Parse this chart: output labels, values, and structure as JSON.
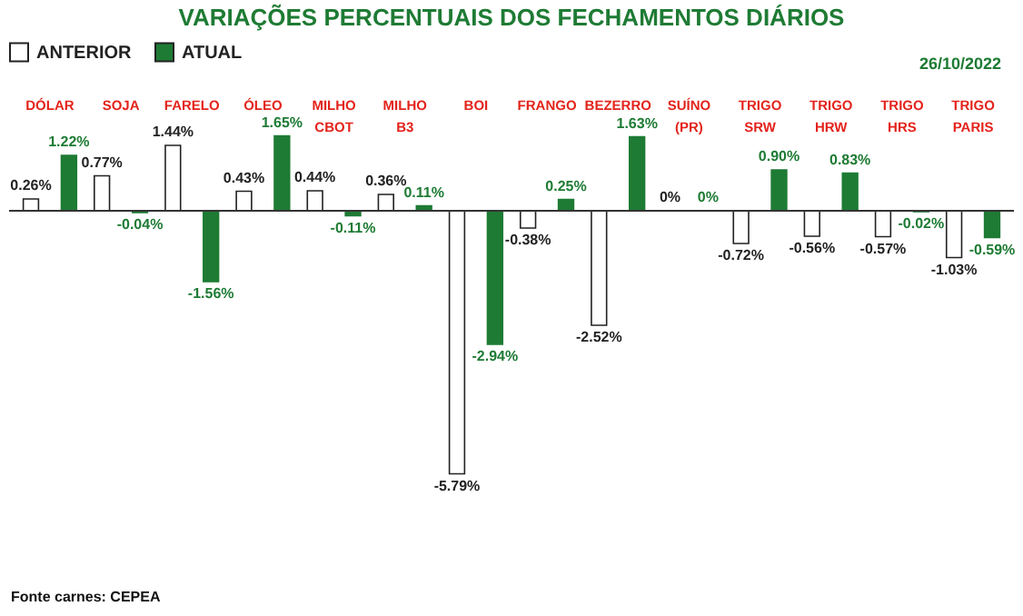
{
  "chart_data": {
    "type": "bar",
    "title": "VARIAÇÕES PERCENTUAIS DOS FECHAMENTOS DIÁRIOS",
    "categories": [
      "DÓLAR",
      "SOJA",
      "FARELO",
      "ÓLEO",
      "MILHO CBOT",
      "MILHO B3",
      "BOI",
      "FRANGO",
      "BEZERRO",
      "SUÍNO (PR)",
      "TRIGO SRW",
      "TRIGO HRW",
      "TRIGO HRS",
      "TRIGO PARIS"
    ],
    "series": [
      {
        "name": "ANTERIOR",
        "color": "#ffffff",
        "values": [
          0.26,
          0.77,
          1.44,
          0.43,
          0.44,
          0.36,
          -5.79,
          -0.38,
          -2.52,
          0,
          -0.72,
          -0.56,
          -0.57,
          -1.03
        ],
        "value_labels": [
          "0.26%",
          "0.77%",
          "1.44%",
          "0.43%",
          "0.44%",
          "0.36%",
          "-5.79%",
          "-0.38%",
          "-2.52%",
          "0%",
          "-0.72%",
          "-0.56%",
          "-0.57%",
          "-1.03%"
        ]
      },
      {
        "name": "ATUAL",
        "color": "#1e7b34",
        "values": [
          1.22,
          -0.04,
          -1.56,
          1.65,
          -0.11,
          0.11,
          -2.94,
          0.25,
          1.63,
          0,
          0.9,
          0.83,
          -0.02,
          -0.59
        ],
        "value_labels": [
          "1.22%",
          "-0.04%",
          "-1.56%",
          "1.65%",
          "-0.11%",
          "0.11%",
          "-2.94%",
          "0.25%",
          "1.63%",
          "0%",
          "0.90%",
          "0.83%",
          "-0.02%",
          "-0.59%"
        ]
      }
    ],
    "ref_lines": [
      {
        "axis": "y",
        "value": 0,
        "color": "#333333"
      }
    ],
    "legend": "top",
    "annotations": [
      "26/10/2022",
      "Fonte carnes: CEPEA"
    ]
  }
}
